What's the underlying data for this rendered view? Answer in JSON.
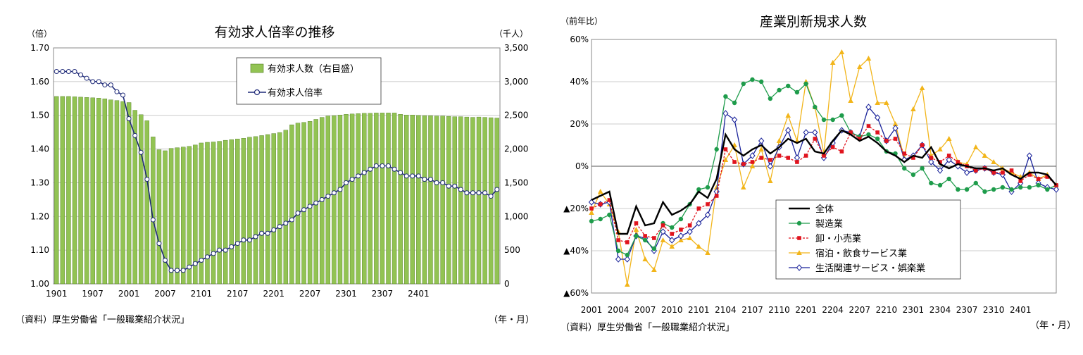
{
  "chart_data": [
    {
      "type": "bar+line",
      "title": "有効求人倍率の推移",
      "y_left_unit": "（倍）",
      "y_right_unit": "（千人）",
      "x_unit": "（年・月）",
      "source": "（資料）厚生労働省「一般職業紹介状況」",
      "y_left_ticks": [
        "1.70",
        "1.60",
        "1.50",
        "1.40",
        "1.30",
        "1.20",
        "1.10",
        "1.00"
      ],
      "y_right_ticks": [
        "3,500",
        "3,000",
        "2,500",
        "2,000",
        "1,500",
        "1,000",
        "500",
        "0"
      ],
      "x_ticks": [
        "1901",
        "1907",
        "2001",
        "2007",
        "2101",
        "2107",
        "2201",
        "2207",
        "2301",
        "2307",
        "2401"
      ],
      "ylim_left": [
        1.0,
        1.7
      ],
      "ylim_right": [
        0,
        3500
      ],
      "legend": [
        "有効求人数（右目盛）",
        "有効求人倍率"
      ],
      "colors": {
        "bar": "#92c353",
        "bar_edge": "#4f7a21",
        "line": "#1f2a78"
      },
      "bars": [
        2780,
        2780,
        2780,
        2775,
        2770,
        2765,
        2760,
        2755,
        2745,
        2730,
        2720,
        2705,
        2690,
        2575,
        2510,
        2420,
        2180,
        1990,
        1975,
        2010,
        2020,
        2030,
        2040,
        2060,
        2090,
        2100,
        2105,
        2115,
        2130,
        2140,
        2150,
        2160,
        2175,
        2185,
        2200,
        2215,
        2230,
        2245,
        2280,
        2360,
        2385,
        2395,
        2410,
        2440,
        2470,
        2490,
        2495,
        2505,
        2515,
        2520,
        2525,
        2530,
        2530,
        2535,
        2535,
        2535,
        2535,
        2515,
        2505,
        2505,
        2500,
        2495,
        2495,
        2490,
        2490,
        2485,
        2480,
        2480,
        2475,
        2470,
        2475,
        2470,
        2465,
        2460
      ],
      "ratio": [
        1.63,
        1.63,
        1.63,
        1.63,
        1.62,
        1.61,
        1.6,
        1.6,
        1.59,
        1.59,
        1.57,
        1.56,
        1.49,
        1.44,
        1.39,
        1.31,
        1.19,
        1.12,
        1.07,
        1.04,
        1.04,
        1.04,
        1.05,
        1.06,
        1.07,
        1.08,
        1.09,
        1.1,
        1.1,
        1.11,
        1.12,
        1.13,
        1.13,
        1.14,
        1.15,
        1.15,
        1.16,
        1.17,
        1.18,
        1.19,
        1.21,
        1.22,
        1.23,
        1.24,
        1.25,
        1.26,
        1.27,
        1.28,
        1.3,
        1.31,
        1.32,
        1.33,
        1.34,
        1.35,
        1.35,
        1.35,
        1.34,
        1.33,
        1.32,
        1.32,
        1.32,
        1.31,
        1.31,
        1.3,
        1.3,
        1.29,
        1.29,
        1.28,
        1.27,
        1.27,
        1.27,
        1.27,
        1.26,
        1.28
      ]
    },
    {
      "type": "line",
      "title": "産業別新規求人数",
      "y_unit": "（前年比）",
      "x_unit": "（年・月）",
      "source": "（資料）厚生労働省「一般職業紹介状況」",
      "y_ticks": [
        "60%",
        "40%",
        "20%",
        "0%",
        "▲20%",
        "▲40%",
        "▲60%"
      ],
      "x_ticks": [
        "2001",
        "2004",
        "2007",
        "2010",
        "2101",
        "2104",
        "2107",
        "2110",
        "2201",
        "2204",
        "2207",
        "2210",
        "2301",
        "2304",
        "2307",
        "2310",
        "2401"
      ],
      "ylim": [
        -60,
        60
      ],
      "series": [
        {
          "name": "全体",
          "color": "#000000",
          "marker": "none",
          "values": [
            -16,
            -14,
            -12,
            -32,
            -32,
            -19,
            -28,
            -27,
            -17,
            -23,
            -21,
            -18,
            -12,
            -15,
            -6,
            15,
            8,
            5,
            8,
            10,
            6,
            9,
            13,
            11,
            13,
            7,
            6,
            12,
            17,
            15,
            12,
            14,
            11,
            7,
            5,
            2,
            5,
            4,
            9,
            1,
            -1,
            1,
            0,
            -1,
            -1,
            -2,
            -1,
            -4,
            -6,
            -3,
            -3,
            -4,
            -9
          ]
        },
        {
          "name": "製造業",
          "color": "#1e9c4b",
          "marker": "circle",
          "values": [
            -26,
            -25,
            -23,
            -40,
            -42,
            -33,
            -35,
            -39,
            -27,
            -29,
            -25,
            -18,
            -11,
            -10,
            8,
            33,
            30,
            39,
            41,
            40,
            32,
            36,
            38,
            35,
            39,
            28,
            22,
            22,
            24,
            16,
            14,
            15,
            13,
            7,
            6,
            -1,
            -4,
            -1,
            -8,
            -9,
            -6,
            -11,
            -11,
            -8,
            -12,
            -11,
            -10,
            -11,
            -10,
            -10,
            -9,
            -11,
            -9
          ]
        },
        {
          "name": "卸・小売業",
          "color": "#e0141e",
          "marker": "square",
          "values": [
            -20,
            -18,
            -16,
            -35,
            -36,
            -27,
            -33,
            -34,
            -28,
            -32,
            -30,
            -28,
            -20,
            -18,
            -14,
            8,
            2,
            1,
            2,
            4,
            3,
            5,
            4,
            2,
            5,
            13,
            5,
            9,
            7,
            16,
            13,
            19,
            16,
            12,
            13,
            6,
            4,
            10,
            4,
            2,
            5,
            2,
            0,
            -2,
            -1,
            -3,
            -3,
            -2,
            -7,
            -4,
            -6,
            -5,
            -9
          ]
        },
        {
          "name": "宿泊・飲食サービス業",
          "color": "#f2b51a",
          "marker": "triangle",
          "values": [
            -22,
            -12,
            -18,
            -31,
            -56,
            -30,
            -44,
            -49,
            -35,
            -38,
            -35,
            -34,
            -38,
            -41,
            -10,
            3,
            10,
            -10,
            0,
            8,
            -7,
            12,
            24,
            12,
            40,
            28,
            6,
            49,
            54,
            31,
            47,
            51,
            30,
            30,
            20,
            4,
            27,
            37,
            5,
            8,
            13,
            2,
            1,
            9,
            5,
            2,
            -1,
            -3,
            -5,
            -3,
            -6,
            -4,
            -9
          ]
        },
        {
          "name": "生活関連サービス・娯楽業",
          "color": "#1a239a",
          "marker": "diamond",
          "values": [
            -17,
            -18,
            -17,
            -44,
            -44,
            -33,
            -34,
            -40,
            -31,
            -35,
            -33,
            -31,
            -27,
            -23,
            -12,
            25,
            22,
            1,
            5,
            12,
            0,
            9,
            17,
            4,
            16,
            16,
            4,
            11,
            17,
            16,
            14,
            28,
            23,
            12,
            18,
            3,
            5,
            10,
            2,
            -2,
            3,
            0,
            -3,
            -2,
            -1,
            -3,
            -4,
            -12,
            -8,
            5,
            -8,
            -10,
            -11
          ]
        }
      ]
    }
  ]
}
